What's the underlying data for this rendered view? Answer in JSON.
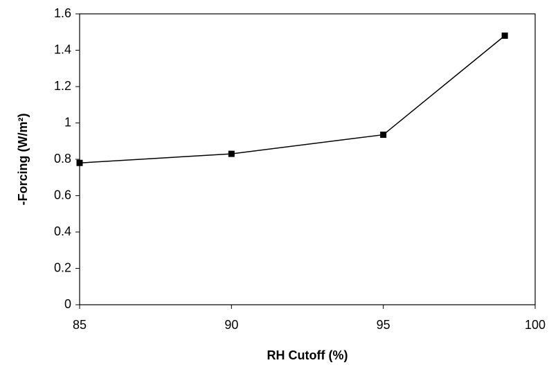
{
  "chart_data": {
    "type": "line",
    "x_label": "RH Cutoff (%)",
    "y_label": "-Forcing (W/m²)",
    "x": [
      85,
      90,
      95,
      99
    ],
    "series": [
      {
        "color": "#000000",
        "values": [
          0.78,
          0.83,
          0.935,
          1.48
        ]
      }
    ],
    "xlim": [
      85,
      100
    ],
    "xticks": [
      85,
      90,
      95,
      100
    ],
    "ylim": [
      0,
      1.6
    ],
    "yticks": [
      0,
      0.2,
      0.4,
      0.6,
      0.8,
      1,
      1.2,
      1.4,
      1.6
    ],
    "grid": false
  }
}
